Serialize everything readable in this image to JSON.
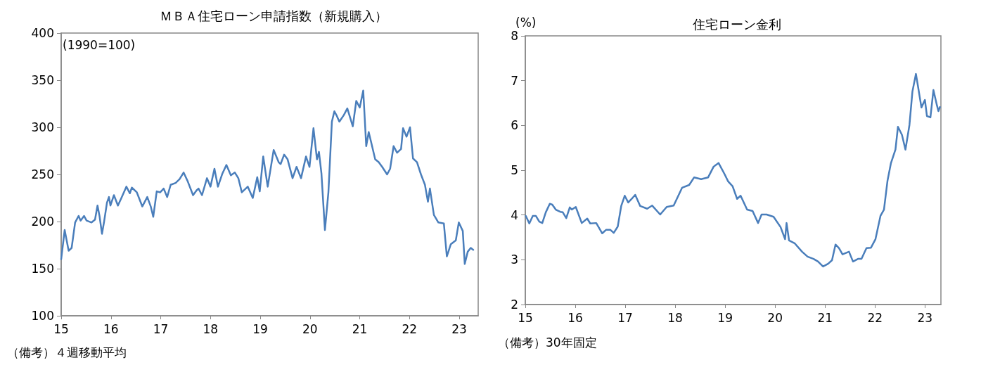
{
  "chart_data": [
    {
      "type": "line",
      "title": "ＭＢＡ住宅ローン申請指数（新規購入）",
      "ylabel": "(1990=100)",
      "annotations": [
        "（備考）４週移動平均"
      ],
      "x": [
        2015.0,
        2015.07,
        2015.15,
        2015.21,
        2015.28,
        2015.35,
        2015.39,
        2015.46,
        2015.51,
        2015.61,
        2015.68,
        2015.73,
        2015.77,
        2015.82,
        2015.86,
        2015.92,
        2015.96,
        2015.99,
        2016.06,
        2016.14,
        2016.21,
        2016.31,
        2016.38,
        2016.42,
        2016.52,
        2016.63,
        2016.73,
        2016.8,
        2016.85,
        2016.92,
        2016.99,
        2017.06,
        2017.13,
        2017.2,
        2017.3,
        2017.38,
        2017.46,
        2017.54,
        2017.65,
        2017.72,
        2017.76,
        2017.83,
        2017.93,
        2018.0,
        2018.08,
        2018.15,
        2018.24,
        2018.32,
        2018.41,
        2018.49,
        2018.56,
        2018.63,
        2018.75,
        2018.85,
        2018.94,
        2018.99,
        2019.06,
        2019.15,
        2019.27,
        2019.37,
        2019.41,
        2019.48,
        2019.55,
        2019.65,
        2019.73,
        2019.82,
        2019.92,
        2019.99,
        2020.07,
        2020.14,
        2020.18,
        2020.23,
        2020.3,
        2020.37,
        2020.44,
        2020.49,
        2020.54,
        2020.59,
        2020.68,
        2020.75,
        2020.86,
        2020.93,
        2021.0,
        2021.07,
        2021.13,
        2021.18,
        2021.23,
        2021.31,
        2021.38,
        2021.45,
        2021.55,
        2021.61,
        2021.68,
        2021.75,
        2021.83,
        2021.87,
        2021.94,
        2022.01,
        2022.07,
        2022.15,
        2022.23,
        2022.31,
        2022.37,
        2022.41,
        2022.49,
        2022.58,
        2022.69,
        2022.75,
        2022.83,
        2022.93,
        2022.99,
        2023.07,
        2023.11,
        2023.17,
        2023.23,
        2023.28
      ],
      "series": [
        {
          "color": "#4a7ebb",
          "values": [
            160,
            191,
            169,
            172,
            199,
            206,
            201,
            206,
            201,
            199,
            202,
            217,
            206,
            187,
            199,
            220,
            226,
            217,
            228,
            217,
            225,
            237,
            230,
            236,
            231,
            216,
            226,
            216,
            205,
            232,
            231,
            235,
            226,
            239,
            241,
            245,
            252,
            243,
            228,
            233,
            235,
            228,
            246,
            237,
            256,
            237,
            251,
            260,
            249,
            252,
            246,
            231,
            237,
            225,
            247,
            232,
            269,
            237,
            276,
            263,
            261,
            271,
            266,
            246,
            258,
            246,
            269,
            258,
            299,
            266,
            274,
            251,
            191,
            231,
            306,
            317,
            312,
            306,
            313,
            320,
            301,
            328,
            321,
            339,
            280,
            295,
            284,
            266,
            263,
            258,
            250,
            256,
            280,
            273,
            277,
            299,
            290,
            300,
            267,
            263,
            250,
            239,
            221,
            235,
            207,
            199,
            198,
            163,
            176,
            180,
            199,
            190,
            155,
            168,
            172,
            170
          ]
        }
      ],
      "xlim": [
        2015,
        2023.38
      ],
      "xticks": [
        {
          "value": 2015,
          "label": "15"
        },
        {
          "value": 2016,
          "label": "16"
        },
        {
          "value": 2017,
          "label": "17"
        },
        {
          "value": 2018,
          "label": "18"
        },
        {
          "value": 2019,
          "label": "19"
        },
        {
          "value": 2020,
          "label": "20"
        },
        {
          "value": 2021,
          "label": "21"
        },
        {
          "value": 2022,
          "label": "22"
        },
        {
          "value": 2023,
          "label": "23"
        }
      ],
      "ylim": [
        100,
        400
      ],
      "yticks": [
        100,
        150,
        200,
        250,
        300,
        350,
        400
      ],
      "grid": false,
      "marker": "none",
      "line_style": "solid"
    },
    {
      "type": "line",
      "title": "住宅ローン金利",
      "ylabel": "(%)",
      "annotations": [
        "（備考）30年固定"
      ],
      "x": [
        2015.01,
        2015.08,
        2015.15,
        2015.21,
        2015.28,
        2015.34,
        2015.41,
        2015.49,
        2015.54,
        2015.61,
        2015.7,
        2015.75,
        2015.82,
        2015.89,
        2015.93,
        2016.01,
        2016.13,
        2016.24,
        2016.3,
        2016.42,
        2016.54,
        2016.62,
        2016.7,
        2016.77,
        2016.85,
        2016.92,
        2016.99,
        2017.06,
        2017.13,
        2017.2,
        2017.3,
        2017.44,
        2017.54,
        2017.7,
        2017.83,
        2017.97,
        2018.14,
        2018.28,
        2018.38,
        2018.52,
        2018.66,
        2018.77,
        2018.87,
        2018.99,
        2019.06,
        2019.15,
        2019.24,
        2019.31,
        2019.44,
        2019.55,
        2019.66,
        2019.73,
        2019.83,
        2019.97,
        2020.11,
        2020.2,
        2020.23,
        2020.28,
        2020.39,
        2020.54,
        2020.65,
        2020.77,
        2020.86,
        2020.96,
        2021.06,
        2021.14,
        2021.21,
        2021.28,
        2021.35,
        2021.48,
        2021.56,
        2021.66,
        2021.73,
        2021.83,
        2021.92,
        2022.01,
        2022.11,
        2022.18,
        2022.25,
        2022.32,
        2022.41,
        2022.46,
        2022.54,
        2022.61,
        2022.69,
        2022.75,
        2022.82,
        2022.86,
        2022.93,
        2023.0,
        2023.04,
        2023.11,
        2023.17,
        2023.24,
        2023.27,
        2023.3
      ],
      "series": [
        {
          "color": "#4a7ebb",
          "values": [
            3.98,
            3.81,
            3.98,
            3.98,
            3.85,
            3.82,
            4.06,
            4.25,
            4.23,
            4.12,
            4.07,
            4.06,
            3.93,
            4.17,
            4.12,
            4.18,
            3.82,
            3.92,
            3.81,
            3.82,
            3.59,
            3.67,
            3.67,
            3.6,
            3.74,
            4.2,
            4.43,
            4.28,
            4.36,
            4.45,
            4.2,
            4.14,
            4.21,
            4.01,
            4.18,
            4.21,
            4.61,
            4.67,
            4.84,
            4.8,
            4.84,
            5.08,
            5.16,
            4.91,
            4.75,
            4.64,
            4.36,
            4.43,
            4.12,
            4.09,
            3.82,
            4.01,
            4.01,
            3.96,
            3.73,
            3.46,
            3.82,
            3.43,
            3.37,
            3.18,
            3.07,
            3.02,
            2.96,
            2.85,
            2.91,
            2.99,
            3.34,
            3.26,
            3.12,
            3.18,
            2.96,
            3.02,
            3.02,
            3.26,
            3.27,
            3.46,
            3.98,
            4.12,
            4.76,
            5.16,
            5.46,
            5.97,
            5.79,
            5.46,
            6.01,
            6.76,
            7.15,
            6.88,
            6.4,
            6.57,
            6.21,
            6.18,
            6.79,
            6.45,
            6.32,
            6.41
          ]
        }
      ],
      "xlim": [
        2015,
        2023.32
      ],
      "xticks": [
        {
          "value": 2015,
          "label": "15"
        },
        {
          "value": 2016,
          "label": "16"
        },
        {
          "value": 2017,
          "label": "17"
        },
        {
          "value": 2018,
          "label": "18"
        },
        {
          "value": 2019,
          "label": "19"
        },
        {
          "value": 2020,
          "label": "20"
        },
        {
          "value": 2021,
          "label": "21"
        },
        {
          "value": 2022,
          "label": "22"
        },
        {
          "value": 2023,
          "label": "23"
        }
      ],
      "ylim": [
        2,
        8
      ],
      "yticks": [
        2,
        3,
        4,
        5,
        6,
        7,
        8
      ],
      "grid": false,
      "marker": "none",
      "line_style": "solid"
    }
  ]
}
